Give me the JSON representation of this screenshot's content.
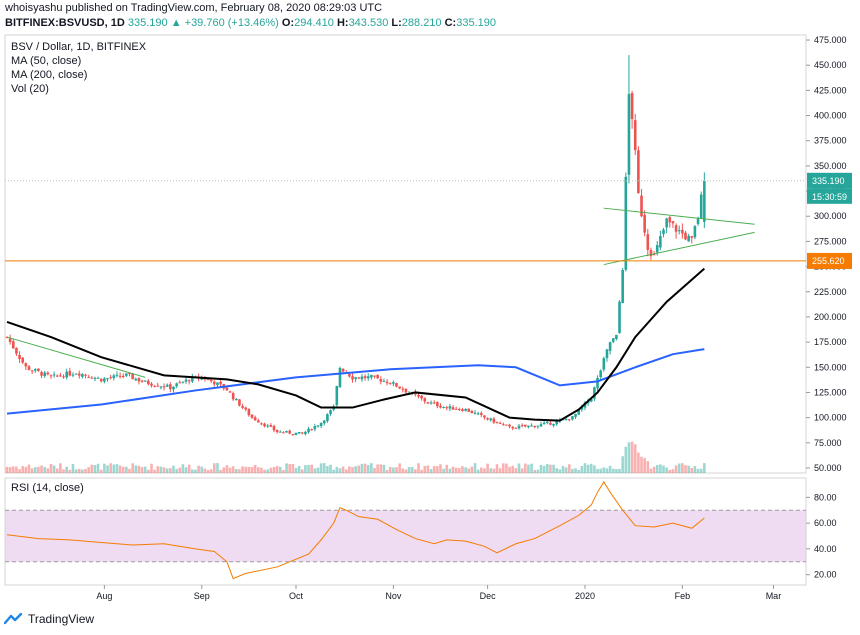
{
  "header": {
    "line1": "whoisyashu published on TradingView.com, February 08, 2020 08:29:03 UTC",
    "symbol": "BITFINEX:BSVUSD, 1D",
    "last": "335.190",
    "change": "+39.760 (+13.46%)",
    "o_label": "O:",
    "o": "294.410",
    "h_label": "H:",
    "h": "343.530",
    "l_label": "L:",
    "l": "288.210",
    "c_label": "C:",
    "c": "335.190"
  },
  "legend": {
    "title": "BSV / Dollar, 1D, BITFINEX",
    "ma50": "MA (50, close)",
    "ma200": "MA (200, close)",
    "vol": "Vol (20)",
    "rsi": "RSI (14, close)"
  },
  "price_tags": {
    "last": "335.190",
    "countdown": "15:30:59",
    "level": "255.620"
  },
  "footer": {
    "brand": "TradingView"
  },
  "colors": {
    "up": "#26a69a",
    "down": "#ef5350",
    "ma50": "#000000",
    "ma200": "#2962ff",
    "trend": "#4caf50",
    "level": "#f57c00",
    "rsi": "#f57c00",
    "rsi_band": "#e1bee7"
  },
  "chart_data": {
    "type": "candlestick",
    "title": "BSV / Dollar, 1D, BITFINEX",
    "x_ticks": [
      "Aug",
      "Sep",
      "Oct",
      "Nov",
      "Dec",
      "2020",
      "Feb",
      "Mar"
    ],
    "x_tick_days": [
      31,
      62,
      92,
      123,
      153,
      184,
      215,
      244
    ],
    "y_ticks": [
      50,
      75,
      100,
      125,
      150,
      175,
      200,
      225,
      250,
      275,
      300,
      325,
      350,
      375,
      400,
      425,
      450,
      475
    ],
    "ylim": [
      45,
      480
    ],
    "rsi_ticks": [
      20,
      40,
      60,
      80
    ],
    "rsi_band": [
      30,
      70
    ],
    "rsi_ylim": [
      12,
      95
    ],
    "horizontal_level": 255.62,
    "last_price": 335.19,
    "anchors": {
      "note": "approximate closing prices read from the chart, day index 0 = start of chart (~Jul 1, 2019)",
      "days": [
        0,
        6,
        14,
        22,
        30,
        38,
        44,
        52,
        58,
        62,
        66,
        70,
        72,
        78,
        86,
        94,
        100,
        104,
        106,
        110,
        116,
        122,
        128,
        134,
        140,
        146,
        152,
        160,
        168,
        174,
        180,
        186,
        192,
        194,
        196,
        198,
        199,
        201,
        204,
        206,
        210,
        214,
        218,
        220,
        222
      ],
      "close": [
        180,
        150,
        140,
        145,
        138,
        142,
        135,
        130,
        138,
        140,
        135,
        128,
        120,
        100,
        86,
        84,
        95,
        110,
        150,
        140,
        140,
        135,
        125,
        115,
        110,
        108,
        100,
        90,
        92,
        95,
        100,
        120,
        175,
        180,
        250,
        420,
        400,
        320,
        270,
        260,
        295,
        285,
        275,
        300,
        335
      ]
    },
    "ma50_points": [
      [
        0,
        195
      ],
      [
        14,
        180
      ],
      [
        30,
        160
      ],
      [
        50,
        142
      ],
      [
        60,
        140
      ],
      [
        70,
        138
      ],
      [
        80,
        133
      ],
      [
        92,
        122
      ],
      [
        100,
        110
      ],
      [
        110,
        110
      ],
      [
        120,
        118
      ],
      [
        130,
        125
      ],
      [
        146,
        120
      ],
      [
        160,
        100
      ],
      [
        168,
        98
      ],
      [
        176,
        97
      ],
      [
        182,
        108
      ],
      [
        188,
        125
      ],
      [
        194,
        150
      ],
      [
        200,
        180
      ],
      [
        210,
        215
      ],
      [
        222,
        248
      ]
    ],
    "ma200_points": [
      [
        0,
        104
      ],
      [
        30,
        113
      ],
      [
        60,
        127
      ],
      [
        92,
        140
      ],
      [
        122,
        148
      ],
      [
        150,
        152
      ],
      [
        162,
        150
      ],
      [
        176,
        132
      ],
      [
        188,
        136
      ],
      [
        200,
        150
      ],
      [
        212,
        163
      ],
      [
        222,
        168
      ]
    ],
    "triangle": {
      "upper": [
        [
          190,
          308
        ],
        [
          238,
          292
        ]
      ],
      "lower": [
        [
          190,
          252
        ],
        [
          238,
          284
        ]
      ]
    },
    "rsi_points": [
      [
        0,
        51
      ],
      [
        10,
        48
      ],
      [
        20,
        47
      ],
      [
        30,
        45
      ],
      [
        40,
        43
      ],
      [
        50,
        44
      ],
      [
        60,
        40
      ],
      [
        66,
        38
      ],
      [
        70,
        30
      ],
      [
        72,
        17
      ],
      [
        76,
        21
      ],
      [
        86,
        26
      ],
      [
        96,
        36
      ],
      [
        100,
        47
      ],
      [
        104,
        60
      ],
      [
        106,
        72
      ],
      [
        108,
        70
      ],
      [
        112,
        65
      ],
      [
        118,
        63
      ],
      [
        124,
        55
      ],
      [
        130,
        48
      ],
      [
        136,
        44
      ],
      [
        140,
        47
      ],
      [
        146,
        46
      ],
      [
        152,
        42
      ],
      [
        156,
        37
      ],
      [
        162,
        44
      ],
      [
        168,
        48
      ],
      [
        176,
        58
      ],
      [
        182,
        66
      ],
      [
        186,
        74
      ],
      [
        188,
        84
      ],
      [
        190,
        92
      ],
      [
        192,
        84
      ],
      [
        196,
        70
      ],
      [
        200,
        58
      ],
      [
        206,
        57
      ],
      [
        212,
        60
      ],
      [
        218,
        56
      ],
      [
        222,
        64
      ]
    ]
  }
}
